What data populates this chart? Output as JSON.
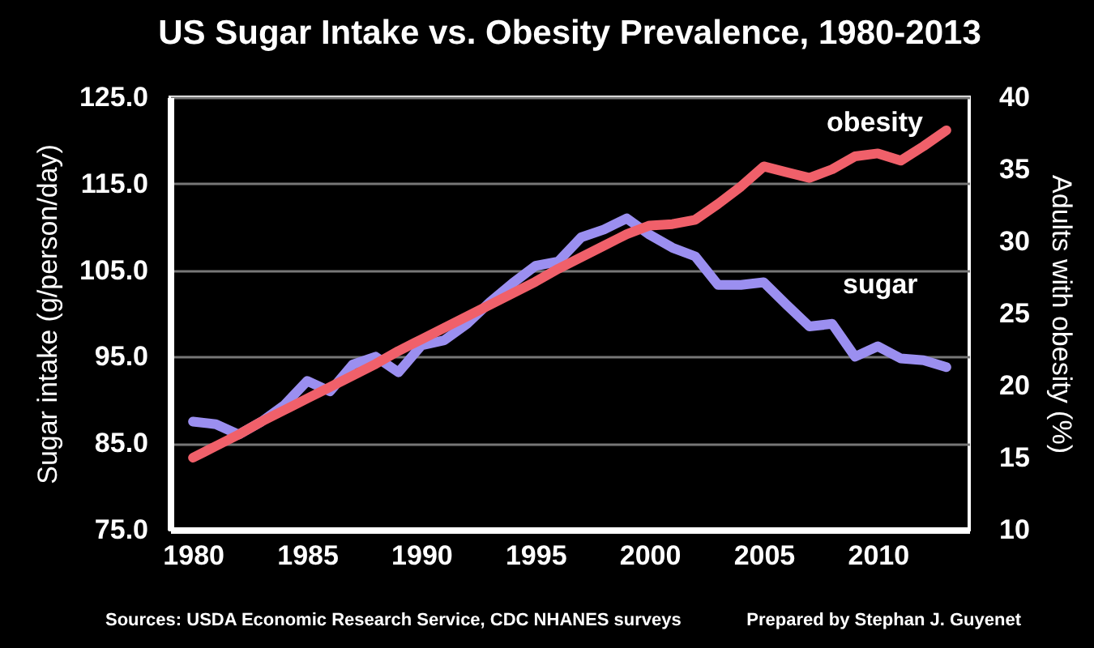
{
  "chart_data": {
    "type": "line",
    "title": "US Sugar Intake vs. Obesity Prevalence, 1980-2013",
    "ylabel": "Sugar intake (g/person/day)",
    "y2label": "Adults with obesity (%)",
    "x": [
      1980,
      1981,
      1982,
      1983,
      1984,
      1985,
      1986,
      1987,
      1988,
      1989,
      1990,
      1991,
      1992,
      1993,
      1994,
      1995,
      1996,
      1997,
      1998,
      1999,
      2000,
      2001,
      2002,
      2003,
      2004,
      2005,
      2006,
      2007,
      2008,
      2009,
      2010,
      2011,
      2012,
      2013
    ],
    "series": [
      {
        "name": "sugar",
        "color": "#9b8ff0",
        "values": [
          87.5,
          87.2,
          86,
          87.5,
          89.4,
          92.2,
          91,
          94.1,
          95,
          93.2,
          96.3,
          96.9,
          98.8,
          101.3,
          103.5,
          105.5,
          106,
          108.8,
          109.7,
          111,
          109.1,
          107.6,
          106.6,
          103.3,
          103.3,
          103.6,
          101,
          98.5,
          98.8,
          95,
          96.2,
          94.8,
          94.6,
          93.8
        ]
      },
      {
        "name": "obesity",
        "color": "#f0606a",
        "axis": "y2",
        "values": [
          15.0,
          15.8,
          16.6,
          17.5,
          18.3,
          19.1,
          19.9,
          20.7,
          21.5,
          22.4,
          23.2,
          24.0,
          24.8,
          25.6,
          26.4,
          27.2,
          28.1,
          28.9,
          29.7,
          30.5,
          31.1,
          31.2,
          31.5,
          32.6,
          33.8,
          35.2,
          34.8,
          34.4,
          35.0,
          35.9,
          36.1,
          35.6,
          36.6,
          37.7
        ]
      }
    ],
    "xlim": [
      1979,
      2014
    ],
    "xticks": [
      1980,
      1985,
      1990,
      1995,
      2000,
      2005,
      2010
    ],
    "ylim": [
      75,
      125
    ],
    "yticks": [
      {
        "value": 75,
        "label": "75.0"
      },
      {
        "value": 85,
        "label": "85.0"
      },
      {
        "value": 95,
        "label": "95.0"
      },
      {
        "value": 105,
        "label": "105.0"
      },
      {
        "value": 115,
        "label": "115.0"
      },
      {
        "value": 125,
        "label": "125.0"
      }
    ],
    "y2lim": [
      10,
      40
    ],
    "y2ticks": [
      10,
      15,
      20,
      25,
      30,
      35,
      40
    ],
    "grid": "y",
    "legend": false,
    "line_style": "solid",
    "marker": "none",
    "annotations": [
      "Sources: USDA Economic Research Service, CDC NHANES surveys",
      "Prepared by Stephan J. Guyenet"
    ]
  }
}
